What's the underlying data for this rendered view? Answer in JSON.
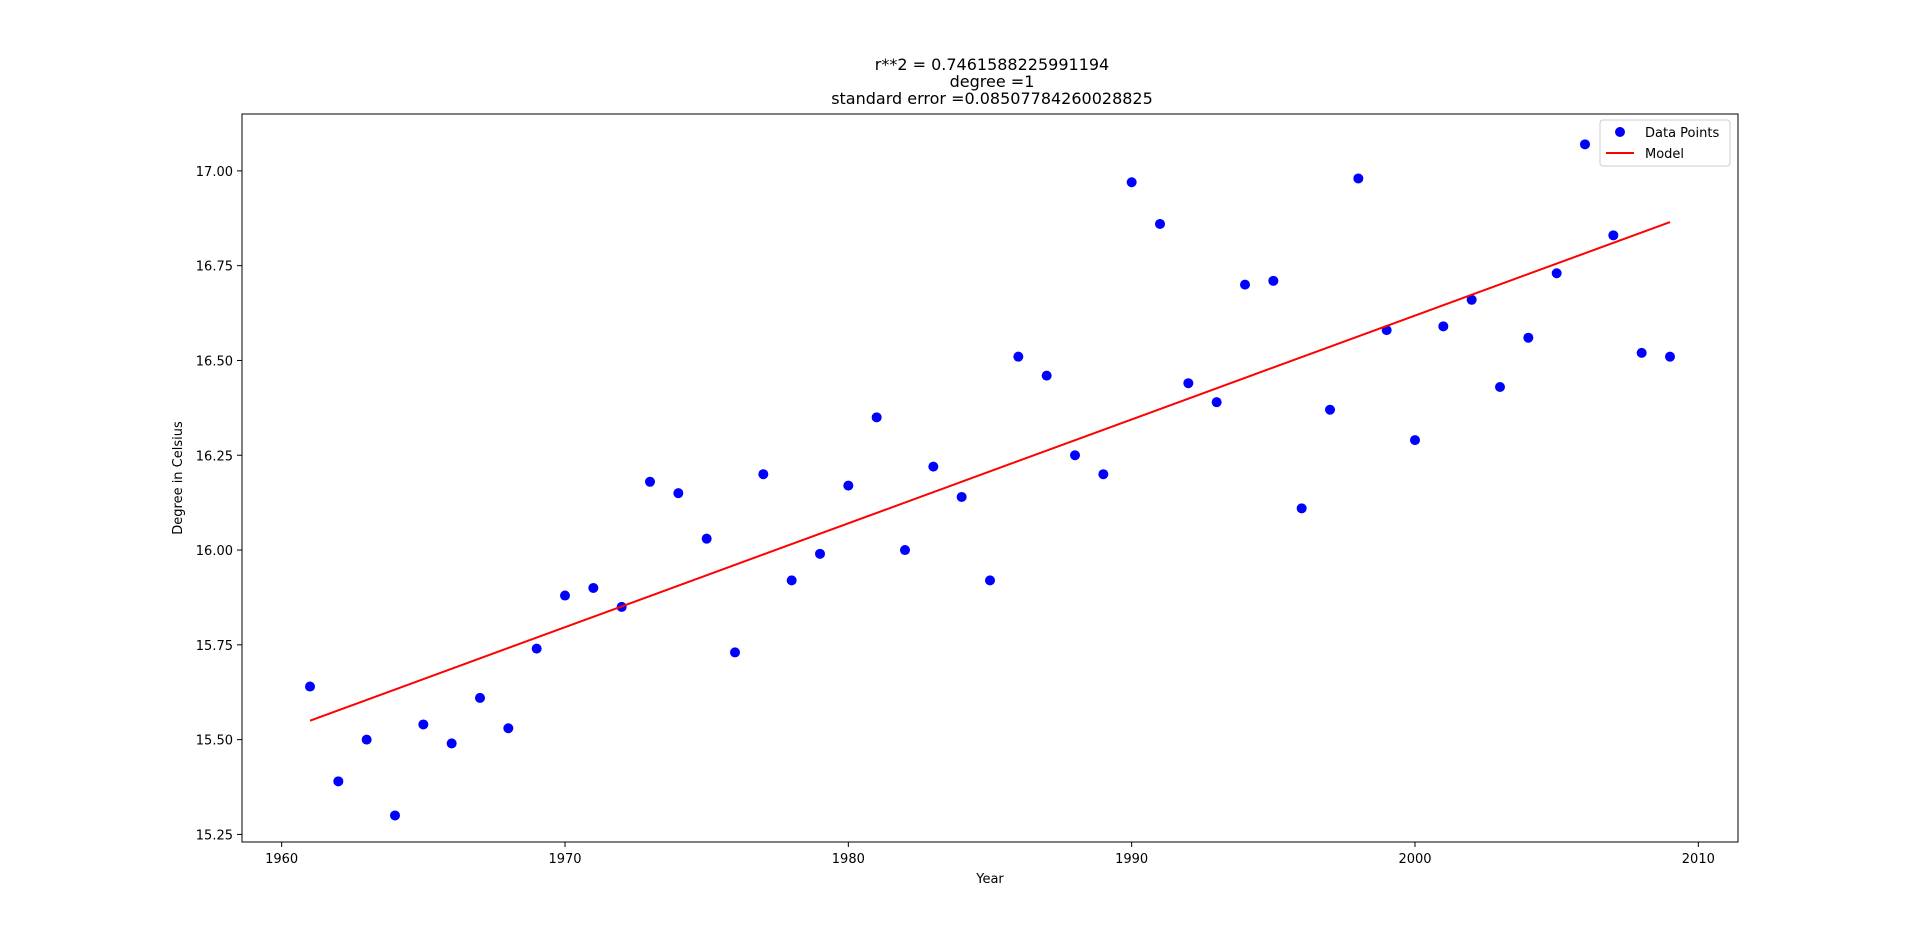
{
  "chart_data": {
    "type": "scatter",
    "title_lines": [
      "r**2 = 0.7461588225991194",
      "degree =1",
      "standard error =0.08507784260028825"
    ],
    "xlabel": "Year",
    "ylabel": "Degree in Celsius",
    "xlim": [
      1958.6,
      2011.4
    ],
    "ylim": [
      15.23,
      17.15
    ],
    "xticks": [
      1960,
      1970,
      1980,
      1990,
      2000,
      2010
    ],
    "xtick_labels": [
      "1960",
      "1970",
      "1980",
      "1990",
      "2000",
      "2010"
    ],
    "yticks": [
      15.25,
      15.5,
      15.75,
      16.0,
      16.25,
      16.5,
      16.75,
      17.0
    ],
    "ytick_labels": [
      "15.25",
      "15.50",
      "15.75",
      "16.00",
      "16.25",
      "16.50",
      "16.75",
      "17.00"
    ],
    "grid": false,
    "legend_position": "top-right",
    "series": [
      {
        "name": "Data Points",
        "kind": "scatter",
        "color": "#0000ff",
        "x": [
          1961,
          1962,
          1963,
          1964,
          1965,
          1966,
          1967,
          1968,
          1969,
          1970,
          1971,
          1972,
          1973,
          1974,
          1975,
          1976,
          1977,
          1978,
          1979,
          1980,
          1981,
          1982,
          1983,
          1984,
          1985,
          1986,
          1987,
          1988,
          1989,
          1990,
          1991,
          1992,
          1993,
          1994,
          1995,
          1996,
          1997,
          1998,
          1999,
          2000,
          2001,
          2002,
          2003,
          2004,
          2005,
          2006,
          2007,
          2008,
          2009
        ],
        "y": [
          15.64,
          15.39,
          15.5,
          15.3,
          15.54,
          15.49,
          15.61,
          15.53,
          15.74,
          15.88,
          15.9,
          15.85,
          16.18,
          16.15,
          16.03,
          15.73,
          16.2,
          15.92,
          15.99,
          16.17,
          16.35,
          16.0,
          16.22,
          16.14,
          15.92,
          16.51,
          16.46,
          16.25,
          16.2,
          16.97,
          16.86,
          16.44,
          16.39,
          16.7,
          16.71,
          16.11,
          16.37,
          16.98,
          16.58,
          16.29,
          16.59,
          16.66,
          16.43,
          16.56,
          16.73,
          17.07,
          16.83,
          16.52,
          16.51
        ]
      },
      {
        "name": "Model",
        "kind": "line",
        "color": "#ff0000",
        "x": [
          1961,
          2009
        ],
        "y": [
          15.55,
          16.865
        ]
      }
    ]
  }
}
